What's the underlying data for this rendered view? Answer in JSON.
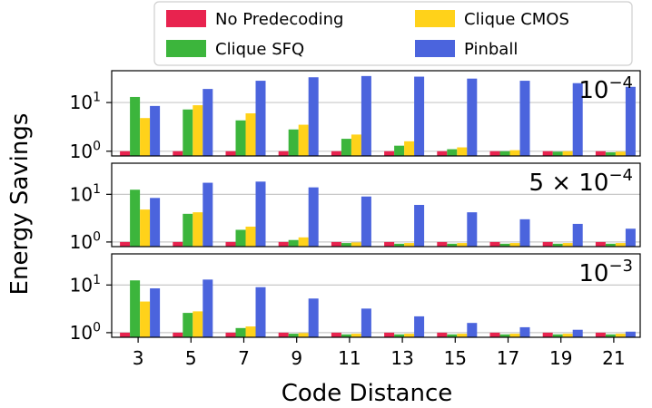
{
  "chart_data": {
    "type": "bar",
    "scale": "log",
    "ylabel": "Energy Savings",
    "xlabel": "Code Distance",
    "categories": [
      "3",
      "5",
      "7",
      "9",
      "11",
      "13",
      "15",
      "17",
      "19",
      "21"
    ],
    "legend": [
      {
        "name": "No Predecoding",
        "color": "#e8234f"
      },
      {
        "name": "Clique CMOS",
        "color": "#ffd21a"
      },
      {
        "name": "Clique SFQ",
        "color": "#3cb53c"
      },
      {
        "name": "Pinball",
        "color": "#4b64dd"
      }
    ],
    "y_ticks": [
      {
        "value": 1,
        "base": "10",
        "exp": "0"
      },
      {
        "value": 10,
        "base": "10",
        "exp": "1"
      }
    ],
    "ylim": [
      0.8,
      45
    ],
    "panels": [
      {
        "annotation": {
          "prefix": "",
          "base": "10",
          "exp": "−4"
        },
        "series": [
          {
            "name": "No Predecoding",
            "values": [
              1,
              1,
              1,
              1,
              1,
              1,
              1,
              1,
              1,
              1
            ]
          },
          {
            "name": "Clique SFQ",
            "values": [
              13,
              7.2,
              4.3,
              2.8,
              1.8,
              1.3,
              1.1,
              1.0,
              0.98,
              0.95
            ]
          },
          {
            "name": "Clique CMOS",
            "values": [
              4.8,
              8.8,
              6.0,
              3.5,
              2.2,
              1.6,
              1.2,
              1.05,
              1.0,
              0.98
            ]
          },
          {
            "name": "Pinball",
            "values": [
              8.5,
              19,
              28,
              33,
              35,
              34,
              31,
              28,
              25,
              21
            ]
          }
        ]
      },
      {
        "annotation": {
          "prefix": "5 × ",
          "base": "10",
          "exp": "−4"
        },
        "series": [
          {
            "name": "No Predecoding",
            "values": [
              1,
              1,
              1,
              1,
              1,
              1,
              1,
              1,
              1,
              1
            ]
          },
          {
            "name": "Clique SFQ",
            "values": [
              12.5,
              3.9,
              1.8,
              1.1,
              0.95,
              0.92,
              0.92,
              0.92,
              0.92,
              0.92
            ]
          },
          {
            "name": "Clique CMOS",
            "values": [
              4.8,
              4.2,
              2.1,
              1.25,
              0.98,
              0.95,
              0.95,
              0.95,
              0.95,
              0.95
            ]
          },
          {
            "name": "Pinball",
            "values": [
              8.4,
              17.5,
              18.5,
              14,
              9,
              6,
              4.2,
              3.0,
              2.4,
              1.9
            ]
          }
        ]
      },
      {
        "annotation": {
          "prefix": "",
          "base": "10",
          "exp": "−3"
        },
        "series": [
          {
            "name": "No Predecoding",
            "values": [
              1,
              1,
              1,
              1,
              1,
              1,
              1,
              1,
              1,
              1
            ]
          },
          {
            "name": "Clique SFQ",
            "values": [
              12.5,
              2.6,
              1.25,
              0.95,
              0.92,
              0.92,
              0.92,
              0.92,
              0.92,
              0.92
            ]
          },
          {
            "name": "Clique CMOS",
            "values": [
              4.5,
              2.8,
              1.35,
              0.98,
              0.95,
              0.95,
              0.95,
              0.95,
              0.95,
              0.95
            ]
          },
          {
            "name": "Pinball",
            "values": [
              8.5,
              13,
              9,
              5.2,
              3.2,
              2.2,
              1.6,
              1.3,
              1.15,
              1.05
            ]
          }
        ]
      }
    ]
  }
}
